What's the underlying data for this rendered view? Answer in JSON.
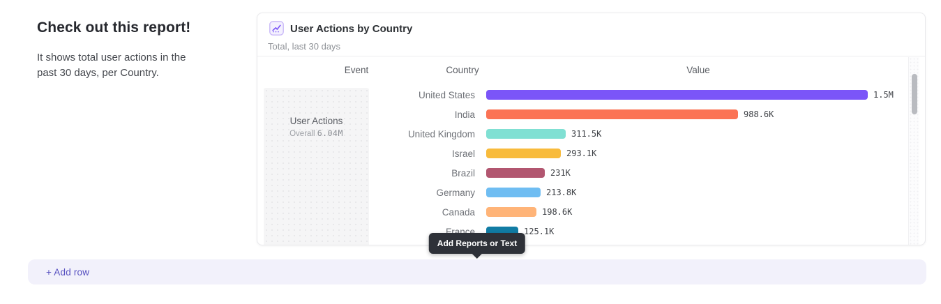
{
  "intro": {
    "heading": "Check out this report!",
    "description": "It shows total user actions in the past 30 days, per Country."
  },
  "report_card": {
    "title": "User Actions by Country",
    "subtitle": "Total, last 30 days",
    "icon": "line-chart-icon",
    "table": {
      "columns": [
        "Event",
        "Country",
        "Value"
      ],
      "event_cell": {
        "name": "User Actions",
        "overall_label": "Overall",
        "overall_value": "6.04M"
      }
    }
  },
  "chart_data": {
    "type": "bar",
    "orientation": "horizontal",
    "title": "User Actions by Country",
    "subtitle": "Total, last 30 days",
    "categories": [
      "United States",
      "India",
      "United Kingdom",
      "Israel",
      "Brazil",
      "Germany",
      "Canada",
      "France"
    ],
    "values": [
      1500000,
      988600,
      311500,
      293100,
      231000,
      213800,
      198600,
      125100
    ],
    "value_labels": [
      "1.5M",
      "988.6K",
      "311.5K",
      "293.1K",
      "231K",
      "213.8K",
      "198.6K",
      "125.1K"
    ],
    "bar_colors": [
      "#7B55F8",
      "#FB7355",
      "#80E0D3",
      "#F8BB3C",
      "#B25670",
      "#6FBDF2",
      "#FFB478",
      "#117CA4"
    ],
    "overall_total": "6.04M",
    "xlim": [
      0,
      1500000
    ],
    "grid": false,
    "legend": false
  },
  "tooltip": {
    "text": "Add Reports or Text"
  },
  "add_row": {
    "label": "+ Add row"
  },
  "colors": {
    "accent_purple": "#7B55F8",
    "add_row_bg": "#F2F1FB",
    "add_row_text": "#564FC0",
    "tooltip_bg": "#2E3138",
    "card_border": "#E9E9EC"
  }
}
